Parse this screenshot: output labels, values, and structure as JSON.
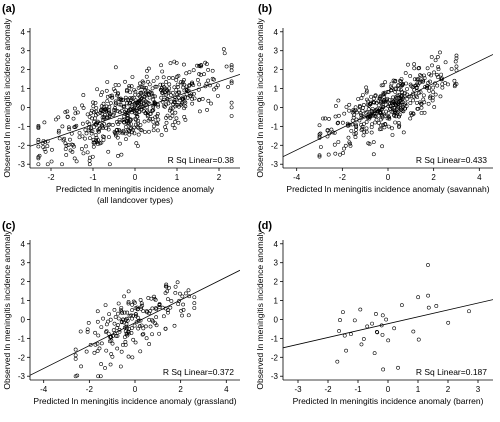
{
  "chart_data": [
    {
      "type": "scatter",
      "panel_label": "(a)",
      "xlabel_lines": [
        "Predicted ln meningitis incidence anomaly",
        "(all landcover types)"
      ],
      "ylabel": "Observed ln meningitis incidence anomaly",
      "xlim": [
        -2.5,
        2.5
      ],
      "ylim": [
        -3.2,
        4.2
      ],
      "xticks": [
        -2,
        -1,
        0,
        1,
        2
      ],
      "yticks": [
        -3,
        -2,
        -1,
        0,
        1,
        2,
        3,
        4
      ],
      "annotation": "R Sq Linear=0.38",
      "fit": {
        "x": [
          -2.5,
          2.5
        ],
        "y": [
          -2.05,
          1.75
        ]
      },
      "series": [
        {
          "n": 600,
          "slope": 0.76,
          "intercept": -0.15,
          "noise": 0.8,
          "xmin": -2.3,
          "xmax": 2.3
        }
      ]
    },
    {
      "type": "scatter",
      "panel_label": "(b)",
      "xlabel_lines": [
        "Predicted ln meningitis incidence anomaly (savannah)"
      ],
      "ylabel": "Observed ln meningitis incidence anomaly",
      "xlim": [
        -4.6,
        4.6
      ],
      "ylim": [
        -3.2,
        4.2
      ],
      "xticks": [
        -4,
        -2,
        0,
        2,
        4
      ],
      "yticks": [
        -3,
        -2,
        -1,
        0,
        1,
        2,
        3,
        4
      ],
      "annotation": "R Sq Linear=0.433",
      "fit": {
        "x": [
          -4.6,
          4.6
        ],
        "y": [
          -2.6,
          2.8
        ]
      },
      "series": [
        {
          "n": 420,
          "slope": 0.6,
          "intercept": 0.1,
          "noise": 0.7,
          "xmin": -3.0,
          "xmax": 3.0
        }
      ]
    },
    {
      "type": "scatter",
      "panel_label": "(c)",
      "xlabel_lines": [
        "Predicted ln meningitis incidence anomaly (grassland)"
      ],
      "ylabel": "Observed ln meningitis incidence anomaly",
      "xlim": [
        -4.6,
        4.6
      ],
      "ylim": [
        -3.2,
        4.2
      ],
      "xticks": [
        -4,
        -2,
        0,
        2,
        4
      ],
      "yticks": [
        -3,
        -2,
        -1,
        0,
        1,
        2,
        3,
        4
      ],
      "annotation": "R Sq Linear=0.372",
      "fit": {
        "x": [
          -4.6,
          4.6
        ],
        "y": [
          -2.95,
          2.6
        ]
      },
      "series": [
        {
          "n": 200,
          "slope": 0.6,
          "intercept": -0.15,
          "noise": 0.75,
          "xmin": -2.6,
          "xmax": 2.6
        }
      ]
    },
    {
      "type": "scatter",
      "panel_label": "(d)",
      "xlabel_lines": [
        "Predicted ln meningitis incidence anomaly (barren)"
      ],
      "ylabel": "Observed ln meningitis incidence anomaly",
      "xlim": [
        -3.5,
        3.5
      ],
      "ylim": [
        -3.2,
        4.2
      ],
      "xticks": [
        -3,
        -2,
        -1,
        0,
        1,
        2,
        3
      ],
      "yticks": [
        -3,
        -2,
        -1,
        0,
        1,
        2,
        3,
        4
      ],
      "annotation": "R Sq Linear=0.187",
      "fit": {
        "x": [
          -3.5,
          3.5
        ],
        "y": [
          -1.5,
          1.05
        ]
      },
      "series": [
        {
          "n": 35,
          "slope": 0.36,
          "intercept": -0.2,
          "noise": 1.0,
          "xmin": -3.0,
          "xmax": 2.7
        }
      ]
    }
  ]
}
